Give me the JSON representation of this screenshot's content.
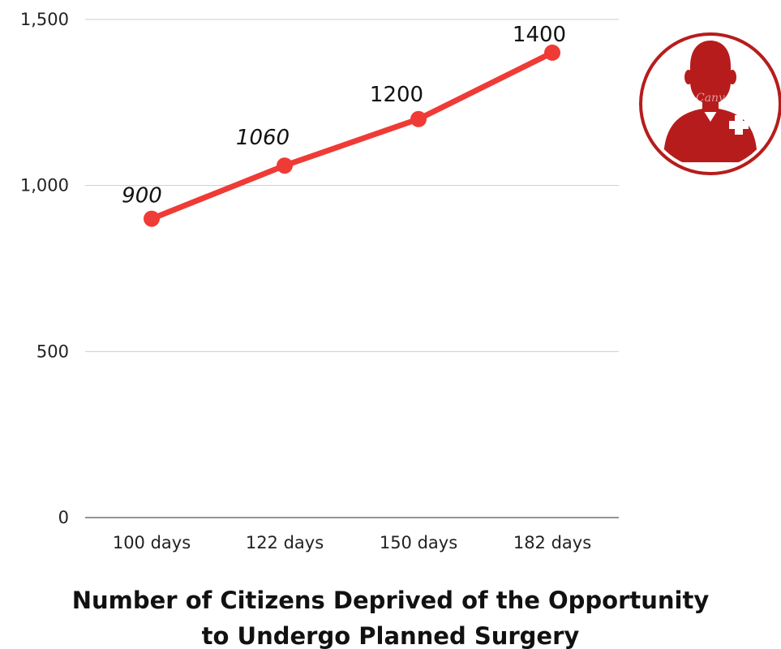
{
  "chart_data": {
    "type": "line",
    "title_lines": [
      "Number of Citizens Deprived of the Opportunity",
      "to Undergo Planned Surgery"
    ],
    "categories": [
      "100 days",
      "122 days",
      "150 days",
      "182 days"
    ],
    "series": [
      {
        "values": [
          900,
          1060,
          1200,
          1400
        ]
      }
    ],
    "data_labels": [
      "900",
      "1060",
      "1200",
      "1400"
    ],
    "y_ticks": [
      {
        "value": 0,
        "label": "0"
      },
      {
        "value": 500,
        "label": "500"
      },
      {
        "value": 1000,
        "label": "1,000"
      },
      {
        "value": 1500,
        "label": "1,500"
      }
    ],
    "ylim": [
      0,
      1500
    ],
    "grid": true,
    "line_color": "#ef3b36",
    "grid_color": "#cfcfcf"
  },
  "icon": {
    "name": "medical-person-icon",
    "circle_color": "#b71c1c",
    "watermark": "Canva"
  }
}
